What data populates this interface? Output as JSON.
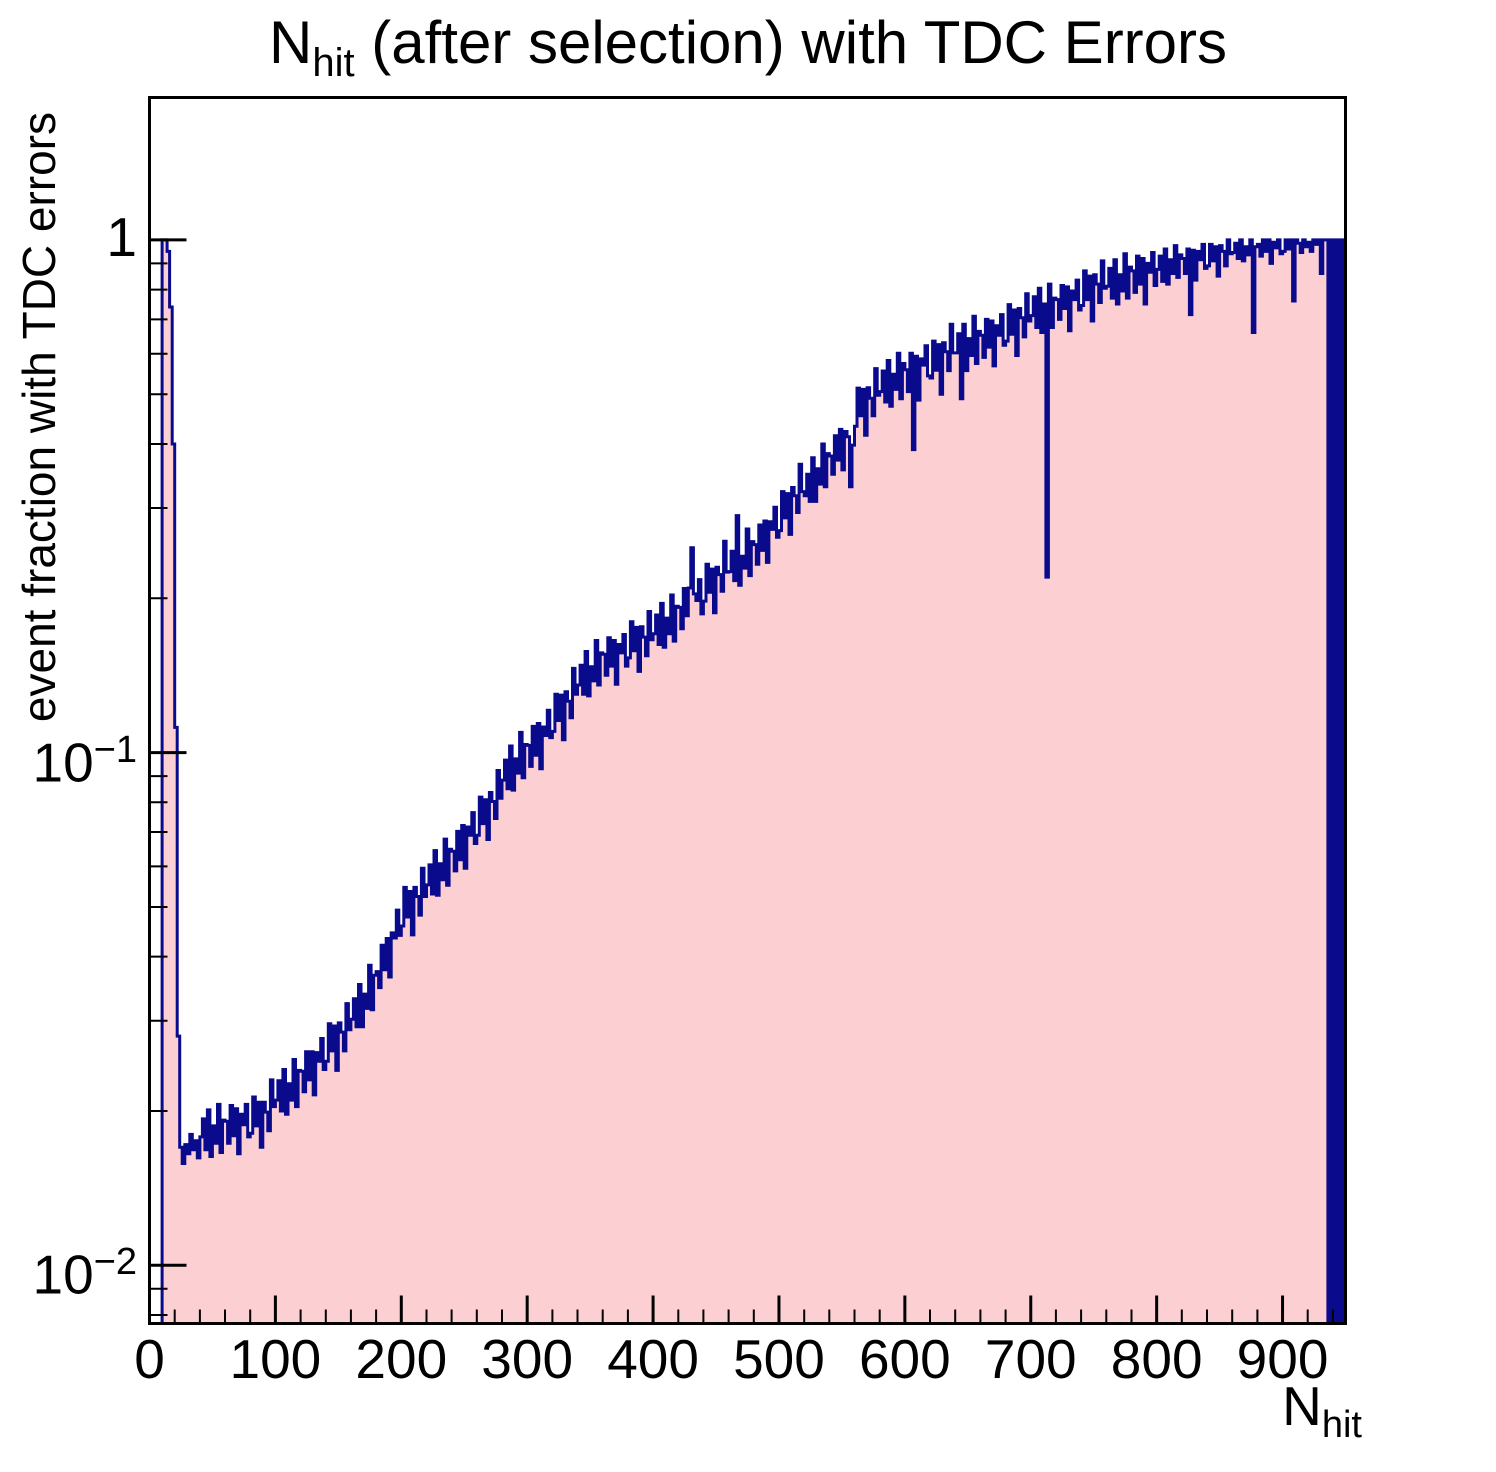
{
  "title": {
    "prefix": "N",
    "subscript": "hit",
    "suffix": " (after selection) with TDC Errors"
  },
  "y_axis": {
    "title": "event fraction with TDC errors",
    "scale": "log",
    "min": 0.0077,
    "max": 1.896,
    "major_ticks": [
      {
        "value": 1,
        "label_base": "1",
        "label_exp": ""
      },
      {
        "value": 0.1,
        "label_base": "10",
        "label_exp": "−1"
      },
      {
        "value": 0.01,
        "label_base": "10",
        "label_exp": "−2"
      }
    ]
  },
  "x_axis": {
    "title_prefix": "N",
    "title_subscript": "hit",
    "min": 0,
    "max": 950,
    "major_tick_step": 100,
    "minor_tick_step": 20,
    "major_ticks": [
      0,
      100,
      200,
      300,
      400,
      500,
      600,
      700,
      800,
      900
    ]
  },
  "colors": {
    "histogram_fill": "#fcd0d2",
    "histogram_line": "#0a0a8c",
    "frame": "#000000",
    "text": "#000000",
    "background": "#ffffff"
  },
  "chart_data": {
    "type": "bar",
    "title": "N_hit (after selection) with TDC Errors",
    "xlabel": "N_hit",
    "ylabel": "event fraction with TDC errors",
    "yscale": "log",
    "xlim": [
      0,
      950
    ],
    "ylim": [
      0.0077,
      1.896
    ],
    "x_start": 0,
    "bin_width": 2,
    "values": [
      0,
      0,
      0,
      0,
      0,
      1.0,
      1.0,
      0.95,
      0.74,
      0.4,
      0.112,
      0.028,
      0.017,
      0.0158,
      0.0172,
      0.0165,
      0.018,
      0.0168,
      0.0175,
      0.0162,
      0.0178,
      0.0193,
      0.0168,
      0.0201,
      0.0163,
      0.0187,
      0.0173,
      0.0206,
      0.0166,
      0.0192,
      0.0191,
      0.0173,
      0.0205,
      0.0179,
      0.0202,
      0.0165,
      0.0197,
      0.0188,
      0.0206,
      0.0178,
      0.0181,
      0.0213,
      0.0187,
      0.0208,
      0.017,
      0.0208,
      0.0199,
      0.0183,
      0.023,
      0.0204,
      0.021,
      0.0229,
      0.02,
      0.0241,
      0.0197,
      0.0226,
      0.021,
      0.0252,
      0.0204,
      0.024,
      0.0239,
      0.0218,
      0.0261,
      0.023,
      0.0261,
      0.0215,
      0.026,
      0.025,
      0.0277,
      0.0241,
      0.025,
      0.0296,
      0.0262,
      0.0293,
      0.024,
      0.0297,
      0.0285,
      0.0262,
      0.0324,
      0.0288,
      0.0302,
      0.0331,
      0.0292,
      0.0353,
      0.0292,
      0.0338,
      0.0317,
      0.0385,
      0.0315,
      0.0368,
      0.0374,
      0.0348,
      0.0421,
      0.0377,
      0.0434,
      0.0365,
      0.0445,
      0.0435,
      0.0493,
      0.044,
      0.0459,
      0.0546,
      0.0478,
      0.0536,
      0.0441,
      0.0546,
      0.0524,
      0.0482,
      0.0595,
      0.0524,
      0.0552,
      0.0604,
      0.053,
      0.0644,
      0.0527,
      0.0607,
      0.0565,
      0.0678,
      0.0551,
      0.0648,
      0.0642,
      0.0588,
      0.0702,
      0.0618,
      0.0721,
      0.0595,
      0.0716,
      0.069,
      0.0764,
      0.0665,
      0.069,
      0.0819,
      0.0727,
      0.0809,
      0.0677,
      0.0836,
      0.0803,
      0.0744,
      0.0923,
      0.0815,
      0.0884,
      0.0967,
      0.085,
      0.103,
      0.0845,
      0.0972,
      0.0912,
      0.1095,
      0.0893,
      0.1037,
      0.1033,
      0.094,
      0.1125,
      0.0988,
      0.114,
      0.093,
      0.1122,
      0.108,
      0.121,
      0.107,
      0.11,
      0.13,
      0.1155,
      0.1295,
      0.106,
      0.1315,
      0.126,
      0.117,
      0.146,
      0.13,
      0.1355,
      0.148,
      0.13,
      0.1575,
      0.129,
      0.147,
      0.138,
      0.1655,
      0.1355,
      0.1565,
      0.1555,
      0.1415,
      0.1675,
      0.1475,
      0.1655,
      0.136,
      0.1625,
      0.1565,
      0.17,
      0.1475,
      0.153,
      0.18,
      0.158,
      0.1755,
      0.144,
      0.176,
      0.168,
      0.1545,
      0.1885,
      0.166,
      0.1705,
      0.1855,
      0.1625,
      0.1955,
      0.1605,
      0.183,
      0.1705,
      0.203,
      0.165,
      0.193,
      0.192,
      0.1745,
      0.209,
      0.185,
      0.2095,
      0.251,
      0.204,
      0.198,
      0.2175,
      0.1865,
      0.1975,
      0.233,
      0.2055,
      0.228,
      0.1875,
      0.23,
      0.2225,
      0.2065,
      0.2585,
      0.225,
      0.2255,
      0.247,
      0.2165,
      0.29,
      0.212,
      0.2415,
      0.229,
      0.273,
      0.2215,
      0.258,
      0.2545,
      0.233,
      0.278,
      0.248,
      0.283,
      0.235,
      0.282,
      0.2725,
      0.301,
      0.263,
      0.271,
      0.323,
      0.287,
      0.32,
      0.2665,
      0.329,
      0.317,
      0.294,
      0.365,
      0.323,
      0.317,
      0.349,
      0.309,
      0.376,
      0.309,
      0.358,
      0.334,
      0.4,
      0.33,
      0.383,
      0.379,
      0.349,
      0.415,
      0.372,
      0.427,
      0.356,
      0.423,
      0.413,
      0.33,
      0.398,
      0.433,
      0.514,
      0.454,
      0.511,
      0.416,
      0.515,
      0.491,
      0.454,
      0.561,
      0.498,
      0.506,
      0.555,
      0.483,
      0.582,
      0.474,
      0.547,
      0.511,
      0.601,
      0.49,
      0.574,
      0.558,
      0.506,
      0.601,
      0.39,
      0.593,
      0.487,
      0.586,
      0.57,
      0.622,
      0.543,
      0.538,
      0.635,
      0.557,
      0.625,
      0.5,
      0.63,
      0.605,
      0.556,
      0.685,
      0.602,
      0.602,
      0.656,
      0.49,
      0.685,
      0.556,
      0.642,
      0.595,
      0.71,
      0.574,
      0.663,
      0.652,
      0.59,
      0.7,
      0.618,
      0.695,
      0.568,
      0.68,
      0.652,
      0.715,
      0.623,
      0.635,
      0.748,
      0.655,
      0.73,
      0.595,
      0.735,
      0.705,
      0.647,
      0.785,
      0.695,
      0.712,
      0.775,
      0.675,
      0.805,
      0.66,
      0.75,
      0.22,
      0.82,
      0.675,
      0.77,
      0.765,
      0.7,
      0.815,
      0.735,
      0.81,
      0.665,
      0.795,
      0.765,
      0.835,
      0.73,
      0.745,
      0.87,
      0.765,
      0.85,
      0.695,
      0.855,
      0.82,
      0.755,
      0.91,
      0.805,
      0.812,
      0.88,
      0.77,
      0.915,
      0.75,
      0.855,
      0.795,
      0.94,
      0.77,
      0.885,
      0.87,
      0.79,
      0.93,
      0.82,
      0.92,
      0.75,
      0.9,
      0.865,
      0.945,
      0.815,
      0.876,
      0.93,
      0.83,
      0.96,
      0.82,
      0.915,
      0.86,
      0.975,
      0.845,
      0.935,
      0.92,
      0.86,
      0.96,
      0.715,
      0.955,
      0.835,
      0.95,
      0.915,
      0.98,
      0.88,
      0.89,
      0.98,
      0.91,
      0.97,
      0.85,
      0.975,
      0.95,
      0.89,
      1.0,
      0.94,
      0.945,
      0.985,
      0.92,
      1.0,
      0.91,
      0.97,
      0.935,
      1.0,
      0.66,
      0.97,
      0.98,
      0.93,
      1.0,
      0.95,
      1.0,
      0.9,
      0.99,
      0.965,
      1.0,
      0.94,
      0.95,
      1.0,
      0.96,
      1.0,
      0.76,
      1.0,
      0.985,
      0.945,
      1.0,
      0.97,
      0.99,
      0.95,
      1.0,
      0.98,
      1.0,
      0.86,
      1.0,
      1.0,
      0,
      1.0,
      0,
      1.0,
      0,
      1.0,
      0
    ]
  }
}
